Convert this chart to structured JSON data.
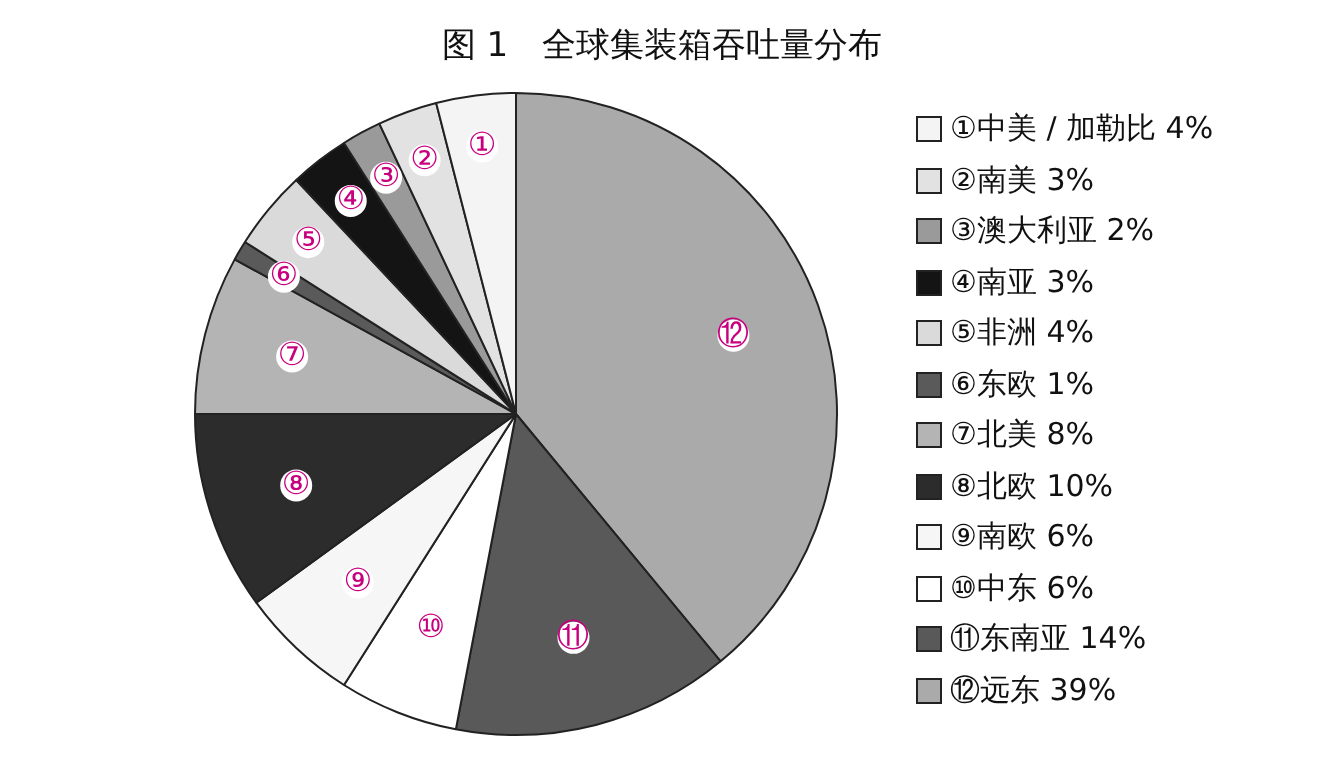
{
  "chart_data": {
    "type": "pie",
    "title": "图 1　全球集装箱吞吐量分布",
    "categories": [
      "①中美 / 加勒比",
      "②南美",
      "③澳大利亚",
      "④南亚",
      "⑤非洲",
      "⑥东欧",
      "⑦北美",
      "⑧北欧",
      "⑨南欧",
      "⑩中东",
      "⑪东南亚",
      "⑫远东"
    ],
    "values": [
      4,
      3,
      2,
      3,
      4,
      1,
      8,
      10,
      6,
      6,
      14,
      39
    ],
    "value_labels": [
      "4%",
      "3%",
      "2%",
      "3%",
      "4%",
      "1%",
      "8%",
      "10%",
      "6%",
      "6%",
      "14%",
      "39%"
    ],
    "colors": [
      "#f4f4f4",
      "#e2e2e2",
      "#9a9a9a",
      "#141414",
      "#dadada",
      "#5a5a5a",
      "#b4b4b4",
      "#2c2c2c",
      "#f6f6f6",
      "#ffffff",
      "#595959",
      "#aaaaaa"
    ],
    "annotations": [
      "①",
      "②",
      "③",
      "④",
      "⑤",
      "⑥",
      "⑦",
      "⑧",
      "⑨",
      "⑩",
      "⑪",
      "⑫"
    ],
    "legend": "right"
  }
}
